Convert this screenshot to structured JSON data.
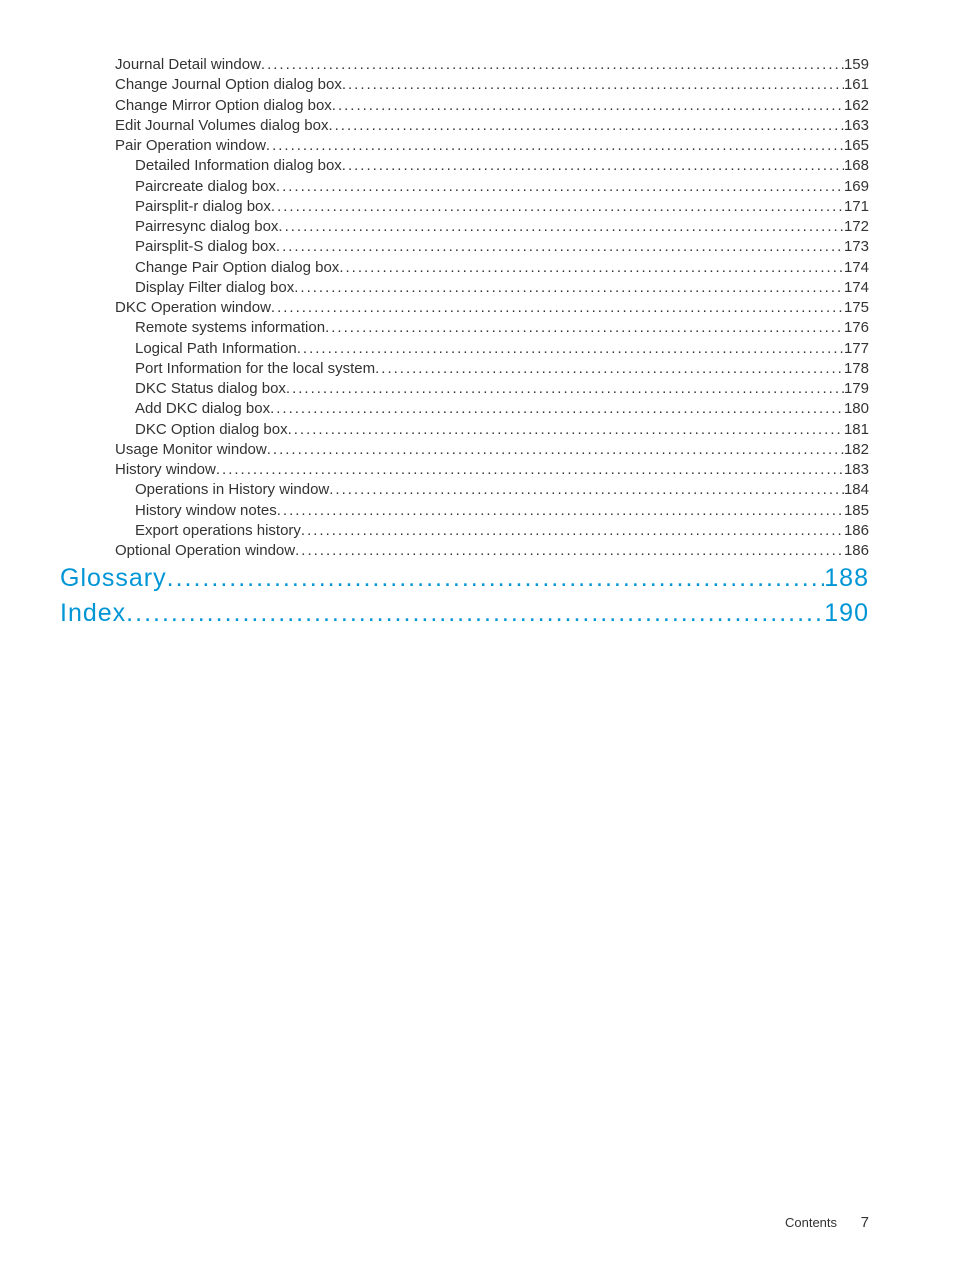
{
  "colors": {
    "text": "#333333",
    "link": "#0096d6",
    "background": "#ffffff"
  },
  "typography": {
    "body_font": "Trebuchet MS",
    "body_size_pt": 11,
    "heading_size_pt": 18,
    "line_height": 1.35
  },
  "toc": {
    "entries": [
      {
        "title": "Journal Detail window ",
        "page": "159",
        "indent": 0,
        "heading": false
      },
      {
        "title": "Change Journal Option dialog box ",
        "page": "161",
        "indent": 0,
        "heading": false
      },
      {
        "title": "Change Mirror Option dialog box ",
        "page": "162",
        "indent": 0,
        "heading": false
      },
      {
        "title": "Edit Journal Volumes dialog box",
        "page": "163",
        "indent": 0,
        "heading": false
      },
      {
        "title": "Pair Operation window ",
        "page": "165",
        "indent": 0,
        "heading": false
      },
      {
        "title": "Detailed Information dialog box ",
        "page": "168",
        "indent": 1,
        "heading": false
      },
      {
        "title": "Paircreate dialog box ",
        "page": "169",
        "indent": 1,
        "heading": false
      },
      {
        "title": "Pairsplit-r dialog box ",
        "page": "171",
        "indent": 1,
        "heading": false
      },
      {
        "title": "Pairresync dialog box ",
        "page": "172",
        "indent": 1,
        "heading": false
      },
      {
        "title": "Pairsplit-S dialog box ",
        "page": "173",
        "indent": 1,
        "heading": false
      },
      {
        "title": "Change Pair Option dialog box",
        "page": "174",
        "indent": 1,
        "heading": false
      },
      {
        "title": "Display Filter dialog box ",
        "page": "174",
        "indent": 1,
        "heading": false
      },
      {
        "title": "DKC Operation window ",
        "page": "175",
        "indent": 0,
        "heading": false
      },
      {
        "title": "Remote systems information ",
        "page": "176",
        "indent": 1,
        "heading": false
      },
      {
        "title": "Logical Path Information",
        "page": "177",
        "indent": 1,
        "heading": false
      },
      {
        "title": "Port Information for the local system",
        "page": "178",
        "indent": 1,
        "heading": false
      },
      {
        "title": "DKC Status dialog box ",
        "page": "179",
        "indent": 1,
        "heading": false
      },
      {
        "title": "Add DKC dialog box ",
        "page": "180",
        "indent": 1,
        "heading": false
      },
      {
        "title": "DKC Option dialog box ",
        "page": "181",
        "indent": 1,
        "heading": false
      },
      {
        "title": "Usage Monitor window ",
        "page": "182",
        "indent": 0,
        "heading": false
      },
      {
        "title": "History window ",
        "page": "183",
        "indent": 0,
        "heading": false
      },
      {
        "title": "Operations in History window ",
        "page": "184",
        "indent": 1,
        "heading": false
      },
      {
        "title": "History window notes",
        "page": "185",
        "indent": 1,
        "heading": false
      },
      {
        "title": "Export operations history ",
        "page": "186",
        "indent": 1,
        "heading": false
      },
      {
        "title": "Optional Operation window ",
        "page": "186",
        "indent": 0,
        "heading": false
      },
      {
        "title": "Glossary",
        "page": "188",
        "indent": -1,
        "heading": true
      },
      {
        "title": "Index",
        "page": "190",
        "indent": -1,
        "heading": true
      }
    ]
  },
  "footer": {
    "label": "Contents",
    "page_number": "7"
  }
}
